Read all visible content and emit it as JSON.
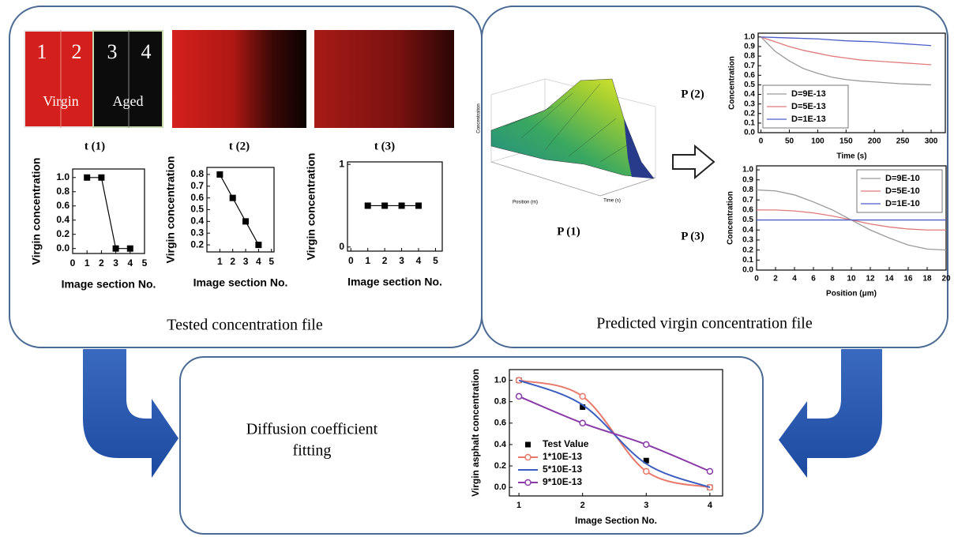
{
  "tested": {
    "caption": "Tested concentration file",
    "sample_image": {
      "sections": [
        "1",
        "2",
        "3",
        "4"
      ],
      "regions": [
        "Virgin",
        "Aged"
      ]
    },
    "time_labels": [
      "t (1)",
      "t (2)",
      "t (3)"
    ],
    "charts": [
      {
        "type": "line",
        "x": [
          1,
          2,
          3,
          4
        ],
        "values": [
          1,
          1,
          0,
          0
        ],
        "color": "#000000",
        "marker": "square",
        "xlim": [
          0,
          5
        ],
        "ylim": [
          -0.07,
          1.12
        ],
        "xticks": [
          0,
          1,
          2,
          3,
          4,
          5
        ],
        "yticks": [
          {
            "value": 0,
            "label": "0.0"
          },
          0.2,
          0.4,
          0.6,
          0.8,
          {
            "value": 1,
            "label": "1.0"
          }
        ],
        "xlabel": "Image section No.",
        "ylabel": "Virgin concentration"
      },
      {
        "type": "line",
        "x": [
          1,
          2,
          3,
          4
        ],
        "values": [
          0.8,
          0.6,
          0.4,
          0.2
        ],
        "color": "#000000",
        "marker": "square",
        "xlim": [
          0,
          5.2
        ],
        "ylim": [
          0.14,
          0.86
        ],
        "xticks": [
          1,
          2,
          3,
          4,
          5
        ],
        "yticks": [
          0.2,
          0.3,
          0.4,
          0.5,
          0.6,
          0.7,
          0.8
        ],
        "xlabel": "Image section No.",
        "ylabel": "Virgin concentration"
      },
      {
        "type": "line",
        "x": [
          1,
          2,
          3,
          4
        ],
        "values": [
          0.5,
          0.5,
          0.5,
          0.5
        ],
        "color": "#000000",
        "marker": "square",
        "xlim": [
          -0.2,
          5.4
        ],
        "ylim": [
          -0.05,
          1.03
        ],
        "xticks": [
          0,
          1,
          2,
          3,
          4,
          5
        ],
        "yticks": [
          0,
          1
        ],
        "xlabel": "Image section No.",
        "ylabel": "Virgin concentration"
      }
    ]
  },
  "predicted": {
    "caption": "Predicted virgin concentration file",
    "surface": {
      "label": "P (1)",
      "axis_labels": [
        "Concentration",
        "Position (m)",
        "Time (s)"
      ]
    },
    "charts": [
      {
        "type": "line",
        "label": "P (2)",
        "x": [
          0,
          25,
          50,
          75,
          100,
          125,
          150,
          175,
          200,
          225,
          250,
          275,
          300
        ],
        "series": [
          {
            "name": "D=9E-13",
            "color": "#9a9a9a",
            "values": [
              1,
              0.85,
              0.75,
              0.67,
              0.62,
              0.58,
              0.555,
              0.54,
              0.53,
              0.52,
              0.51,
              0.505,
              0.5
            ]
          },
          {
            "name": "D=5E-13",
            "color": "#e07a7a",
            "values": [
              1,
              0.95,
              0.9,
              0.86,
              0.83,
              0.8,
              0.78,
              0.76,
              0.75,
              0.74,
              0.73,
              0.72,
              0.71
            ]
          },
          {
            "name": "D=1E-13",
            "color": "#4a5ec8",
            "values": [
              1,
              0.995,
              0.99,
              0.985,
              0.98,
              0.97,
              0.96,
              0.955,
              0.95,
              0.94,
              0.93,
              0.92,
              0.91
            ]
          }
        ],
        "xlim": [
          -5,
          325
        ],
        "ylim": [
          0,
          1.04
        ],
        "xticks": [
          0,
          50,
          100,
          150,
          200,
          250,
          300
        ],
        "yticks": [
          {
            "value": 0,
            "label": "0.0"
          },
          0.1,
          0.2,
          0.3,
          0.4,
          0.5,
          0.6,
          0.7,
          0.8,
          0.9,
          {
            "value": 1,
            "label": "1.0"
          }
        ],
        "xlabel": "Time (s)",
        "ylabel": "Concentration",
        "legend": "lower left"
      },
      {
        "type": "line",
        "label": "P (3)",
        "x": [
          0,
          2,
          4,
          6,
          8,
          10,
          12,
          14,
          16,
          18,
          20
        ],
        "series": [
          {
            "name": "D=9E-10",
            "color": "#9a9a9a",
            "values": [
              0.8,
              0.79,
              0.75,
              0.68,
              0.6,
              0.5,
              0.4,
              0.32,
              0.25,
              0.21,
              0.2
            ]
          },
          {
            "name": "D=5E-10",
            "color": "#e07a7a",
            "values": [
              0.6,
              0.6,
              0.59,
              0.57,
              0.54,
              0.5,
              0.46,
              0.43,
              0.41,
              0.4,
              0.4
            ]
          },
          {
            "name": "D=1E-10",
            "color": "#4a5ec8",
            "values": [
              0.5,
              0.5,
              0.5,
              0.5,
              0.5,
              0.5,
              0.5,
              0.5,
              0.5,
              0.5,
              0.5
            ]
          }
        ],
        "xlim": [
          0,
          20
        ],
        "ylim": [
          0,
          1.04
        ],
        "xticks": [
          0,
          2,
          4,
          6,
          8,
          10,
          12,
          14,
          16,
          18,
          20
        ],
        "yticks": [
          {
            "value": 0,
            "label": "0.0"
          },
          0.1,
          0.2,
          0.3,
          0.4,
          0.5,
          0.6,
          0.7,
          0.8,
          0.9,
          {
            "value": 1,
            "label": "1.0"
          }
        ],
        "xlabel": "Position (μm)",
        "ylabel": "Concentration",
        "legend": "upper right"
      }
    ]
  },
  "fitting": {
    "caption_lines": [
      "Diffusion coefficient",
      "fitting"
    ],
    "chart": {
      "type": "line",
      "x": [
        1,
        2,
        3,
        4
      ],
      "series": [
        {
          "name": "Test Value",
          "color": "#000000",
          "marker": "square",
          "line": false,
          "values": [
            1,
            0.75,
            0.25,
            0
          ]
        },
        {
          "name": "1*10E-13",
          "color": "#e8786a",
          "marker": "circle",
          "smooth": true,
          "values": [
            1,
            0.85,
            0.15,
            0
          ]
        },
        {
          "name": "5*10E-13",
          "color": "#3a5ec0",
          "smooth": true,
          "values": [
            1,
            0.77,
            0.22,
            0
          ]
        },
        {
          "name": "9*10E-13",
          "color": "#8a3aa8",
          "marker": "circle",
          "smooth": true,
          "values": [
            0.85,
            0.6,
            0.4,
            0.15
          ]
        }
      ],
      "xlim": [
        0.85,
        4.2
      ],
      "ylim": [
        -0.08,
        1.1
      ],
      "xticks": [
        1,
        2,
        3,
        4
      ],
      "yticks": [
        {
          "value": 0,
          "label": "0.0"
        },
        0.2,
        0.4,
        0.6,
        0.8,
        {
          "value": 1,
          "label": "1.0"
        }
      ],
      "xlabel": "Image Section No.",
      "ylabel": "Virgin asphalt concentration",
      "legend": "lower left"
    }
  }
}
